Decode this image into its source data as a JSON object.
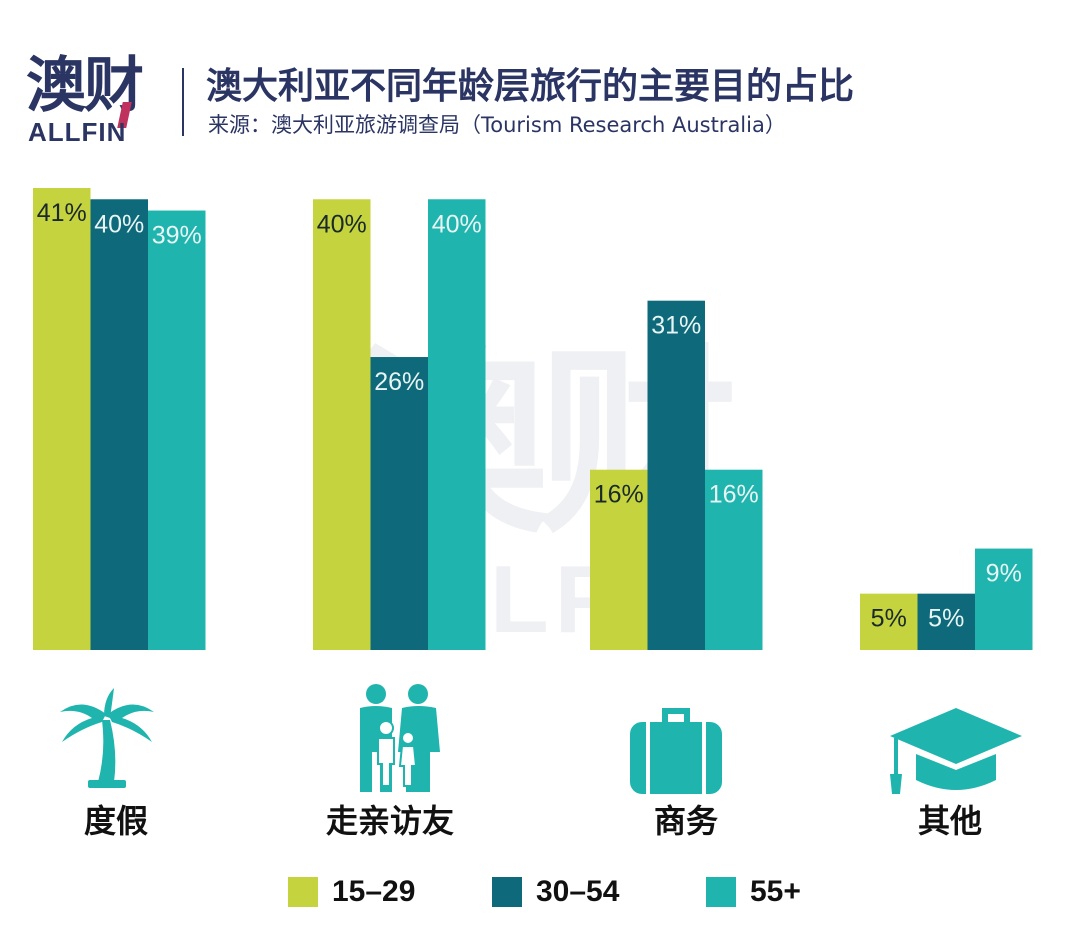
{
  "logo": {
    "cn": "澳财",
    "en": "ALLFIN"
  },
  "header": {
    "title": "澳大利亚不同年龄层旅行的主要目的占比",
    "subtitle": "来源：澳大利亚旅游调查局（Tourism Research Australia）"
  },
  "watermark": {
    "cn": "澳财",
    "en": "ALLFIN"
  },
  "colors": {
    "s1": "#c4d33e",
    "s2": "#0e6a7a",
    "s3": "#1fb5ae",
    "text_dark": "#1a2a2a",
    "text_light": "#e8f4f4",
    "brand": "#2b3563"
  },
  "icons": [
    "palm-tree-icon",
    "family-icon",
    "briefcase-icon",
    "graduation-cap-icon"
  ],
  "chart_data": {
    "type": "bar",
    "categories": [
      "度假",
      "走亲访友",
      "商务",
      "其他"
    ],
    "series": [
      {
        "name": "15–29",
        "values": [
          41,
          40,
          16,
          5
        ],
        "labels": [
          "41%",
          "40%",
          "16%",
          "5%"
        ]
      },
      {
        "name": "30–54",
        "values": [
          40,
          26,
          31,
          5
        ],
        "labels": [
          "40%",
          "26%",
          "31%",
          "5%"
        ]
      },
      {
        "name": "55+",
        "values": [
          39,
          40,
          16,
          9
        ],
        "labels": [
          "39%",
          "40%",
          "16%",
          "9%"
        ]
      }
    ],
    "ylim": [
      0,
      41
    ],
    "grid": false,
    "legend": "bottom"
  }
}
